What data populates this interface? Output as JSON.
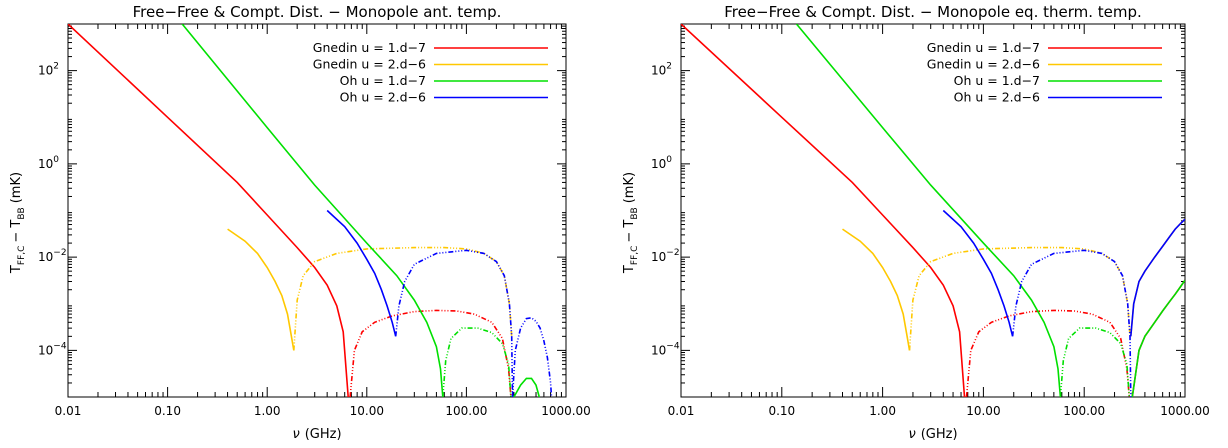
{
  "chart_data": [
    {
      "type": "line",
      "title": "Free−Free & Compt. Dist. − Monopole ant. temp.",
      "xlabel_main": "ν",
      "xlabel_unit": "(GHz)",
      "ylabel_base": "T",
      "ylabel_sub": "FF,C",
      "ylabel_minus": "− T",
      "ylabel_sub2": "BB",
      "ylabel_unit": "(mK)",
      "xscale": "log",
      "yscale": "log",
      "xlim": [
        0.01,
        1000
      ],
      "ylim": [
        1e-05,
        1000
      ],
      "xticks": [
        {
          "value": 0.01,
          "label": "0.01"
        },
        {
          "value": 0.1,
          "label": "0.10"
        },
        {
          "value": 1,
          "label": "1.00"
        },
        {
          "value": 10,
          "label": "10.00"
        },
        {
          "value": 100,
          "label": "100.00"
        },
        {
          "value": 1000,
          "label": "1000.00"
        }
      ],
      "yticks": [
        {
          "value": 0.0001,
          "base": "10",
          "exp": "−4"
        },
        {
          "value": 0.01,
          "base": "10",
          "exp": "−2"
        },
        {
          "value": 1,
          "base": "10",
          "exp": "0"
        },
        {
          "value": 100,
          "base": "10",
          "exp": "2"
        }
      ],
      "legend_position": "top-right",
      "series": [
        {
          "name": "Gnedin u = 1.d−7",
          "color": "#ff0000",
          "x": [
            0.01,
            0.1,
            0.5,
            1,
            2,
            3,
            4,
            5,
            5.8,
            6.5
          ],
          "y": [
            1000,
            10,
            0.4,
            0.08,
            0.016,
            0.006,
            0.0025,
            0.0009,
            0.00025,
            1e-05
          ],
          "dash_x": [
            6.8,
            7.5,
            9,
            12,
            18,
            30,
            50,
            80,
            120,
            180,
            230,
            265,
            280
          ],
          "dash_y": [
            1e-05,
            0.0001,
            0.00025,
            0.0004,
            0.00055,
            0.00068,
            0.00072,
            0.0007,
            0.0006,
            0.0004,
            0.00018,
            4e-05,
            1e-05
          ]
        },
        {
          "name": "Gnedin u = 2.d−6",
          "color": "#ffc800",
          "x": [
            0.4,
            0.6,
            0.8,
            1.0,
            1.2,
            1.4,
            1.6,
            1.75,
            1.85
          ],
          "y": [
            0.04,
            0.022,
            0.012,
            0.006,
            0.003,
            0.0015,
            0.0006,
            0.0002,
            0.0001
          ],
          "dash_x": [
            1.85,
            2.0,
            2.3,
            3,
            5,
            10,
            30,
            60,
            100,
            150,
            200,
            240,
            270,
            285
          ],
          "dash_y": [
            0.0001,
            0.0012,
            0.004,
            0.008,
            0.012,
            0.015,
            0.016,
            0.016,
            0.015,
            0.012,
            0.008,
            0.004,
            0.001,
            0.0002
          ]
        },
        {
          "name": "Oh u = 1.d−7",
          "color": "#00e000",
          "x": [
            0.14,
            1,
            3,
            10,
            20,
            30,
            40,
            50,
            55,
            58
          ],
          "y": [
            1000,
            6,
            0.35,
            0.02,
            0.004,
            0.0012,
            0.0004,
            0.00012,
            4e-05,
            1e-05
          ],
          "dash_x": [
            58,
            62,
            70,
            90,
            130,
            180,
            230,
            265,
            280
          ],
          "dash_y": [
            1e-05,
            6e-05,
            0.00018,
            0.0003,
            0.0003,
            0.00024,
            0.00014,
            5e-05,
            1e-05
          ],
          "hump_x": [
            300,
            350,
            400,
            450,
            500,
            540,
            570
          ],
          "hump_y": [
            1e-05,
            1.8e-05,
            2.5e-05,
            2.5e-05,
            1.8e-05,
            1e-05,
            5e-06
          ]
        },
        {
          "name": "Oh u = 2.d−6",
          "color": "#0000ff",
          "x": [
            4,
            6,
            8,
            10,
            12,
            14,
            16,
            18,
            19.5
          ],
          "y": [
            0.1,
            0.045,
            0.02,
            0.009,
            0.0045,
            0.002,
            0.0009,
            0.0004,
            0.0002
          ],
          "dash_x": [
            19.5,
            21,
            24,
            30,
            50,
            100,
            150,
            200,
            240,
            270,
            285,
            290
          ],
          "dash_y": [
            0.0002,
            0.0009,
            0.003,
            0.007,
            0.012,
            0.014,
            0.012,
            0.008,
            0.004,
            0.001,
            0.0002,
            1e-05
          ],
          "hump_x": [
            290,
            310,
            350,
            400,
            450,
            500,
            550,
            600,
            650,
            700,
            730
          ],
          "hump_y": [
            1e-05,
            0.0001,
            0.0003,
            0.00048,
            0.0005,
            0.00042,
            0.0003,
            0.00016,
            7e-05,
            2e-05,
            5e-06
          ]
        }
      ]
    },
    {
      "type": "line",
      "title": "Free−Free & Compt. Dist. − Monopole eq. therm. temp.",
      "xlabel_main": "ν",
      "xlabel_unit": "(GHz)",
      "ylabel_base": "T",
      "ylabel_sub": "FF,C",
      "ylabel_minus": "− T",
      "ylabel_sub2": "BB",
      "ylabel_unit": "(mK)",
      "xscale": "log",
      "yscale": "log",
      "xlim": [
        0.01,
        1000
      ],
      "ylim": [
        1e-05,
        1000
      ],
      "xticks": [
        {
          "value": 0.01,
          "label": "0.01"
        },
        {
          "value": 0.1,
          "label": "0.10"
        },
        {
          "value": 1,
          "label": "1.00"
        },
        {
          "value": 10,
          "label": "10.00"
        },
        {
          "value": 100,
          "label": "100.00"
        },
        {
          "value": 1000,
          "label": "1000.00"
        }
      ],
      "yticks": [
        {
          "value": 0.0001,
          "base": "10",
          "exp": "−4"
        },
        {
          "value": 0.01,
          "base": "10",
          "exp": "−2"
        },
        {
          "value": 1,
          "base": "10",
          "exp": "0"
        },
        {
          "value": 100,
          "base": "10",
          "exp": "2"
        }
      ],
      "legend_position": "top-right",
      "series": [
        {
          "name": "Gnedin u = 1.d−7",
          "color": "#ff0000",
          "x": [
            0.01,
            0.1,
            0.5,
            1,
            2,
            3,
            4,
            5,
            5.8,
            6.5
          ],
          "y": [
            1000,
            10,
            0.4,
            0.08,
            0.016,
            0.006,
            0.0025,
            0.0009,
            0.00025,
            1e-05
          ],
          "dash_x": [
            6.8,
            7.5,
            9,
            12,
            18,
            30,
            50,
            80,
            120,
            180,
            230,
            265,
            280
          ],
          "dash_y": [
            1e-05,
            0.0001,
            0.00025,
            0.0004,
            0.00055,
            0.00068,
            0.00072,
            0.0007,
            0.0006,
            0.0004,
            0.00018,
            4e-05,
            1e-05
          ],
          "tail_x": [
            300,
            350,
            400,
            500,
            600,
            700,
            800,
            900,
            1000
          ],
          "tail_y": [
            1e-05,
            0.0001,
            0.0002,
            0.0004,
            0.0007,
            0.0011,
            0.0016,
            0.0023,
            0.0032
          ]
        },
        {
          "name": "Gnedin u = 2.d−6",
          "color": "#ffc800",
          "x": [
            0.4,
            0.6,
            0.8,
            1.0,
            1.2,
            1.4,
            1.6,
            1.75,
            1.85
          ],
          "y": [
            0.04,
            0.022,
            0.012,
            0.006,
            0.003,
            0.0015,
            0.0006,
            0.0002,
            0.0001
          ],
          "dash_x": [
            1.85,
            2.0,
            2.3,
            3,
            5,
            10,
            30,
            60,
            100,
            150,
            200,
            240,
            270,
            285
          ],
          "dash_y": [
            0.0001,
            0.0012,
            0.004,
            0.008,
            0.012,
            0.015,
            0.016,
            0.016,
            0.015,
            0.012,
            0.008,
            0.004,
            0.001,
            0.0002
          ],
          "tail_x": [
            290,
            310,
            350,
            400,
            500,
            600,
            700,
            800,
            900,
            1000
          ],
          "tail_y": [
            0.0002,
            0.001,
            0.003,
            0.005,
            0.01,
            0.017,
            0.027,
            0.04,
            0.052,
            0.065
          ]
        },
        {
          "name": "Oh u = 1.d−7",
          "color": "#00e000",
          "x": [
            0.14,
            1,
            3,
            10,
            20,
            30,
            40,
            50,
            55,
            58
          ],
          "y": [
            1000,
            6,
            0.35,
            0.02,
            0.004,
            0.0012,
            0.0004,
            0.00012,
            4e-05,
            1e-05
          ],
          "dash_x": [
            58,
            62,
            70,
            90,
            130,
            180,
            230,
            265,
            280
          ],
          "dash_y": [
            1e-05,
            6e-05,
            0.00018,
            0.0003,
            0.0003,
            0.00024,
            0.00014,
            5e-05,
            1e-05
          ],
          "tail_x": [
            300,
            350,
            400,
            500,
            600,
            700,
            800,
            900,
            1000
          ],
          "tail_y": [
            1e-05,
            0.0001,
            0.0002,
            0.0004,
            0.0007,
            0.0011,
            0.0016,
            0.0023,
            0.0032
          ]
        },
        {
          "name": "Oh u = 2.d−6",
          "color": "#0000ff",
          "x": [
            4,
            6,
            8,
            10,
            12,
            14,
            16,
            18,
            19.5
          ],
          "y": [
            0.1,
            0.045,
            0.02,
            0.009,
            0.0045,
            0.002,
            0.0009,
            0.0004,
            0.0002
          ],
          "dash_x": [
            19.5,
            21,
            24,
            30,
            50,
            100,
            150,
            200,
            240,
            270,
            285,
            290
          ],
          "dash_y": [
            0.0002,
            0.0009,
            0.003,
            0.007,
            0.012,
            0.014,
            0.012,
            0.008,
            0.004,
            0.001,
            0.0002,
            1e-05
          ],
          "tail_x": [
            290,
            310,
            350,
            400,
            500,
            600,
            700,
            800,
            900,
            1000
          ],
          "tail_y": [
            0.0002,
            0.001,
            0.003,
            0.005,
            0.01,
            0.017,
            0.027,
            0.04,
            0.052,
            0.065
          ]
        }
      ]
    }
  ]
}
